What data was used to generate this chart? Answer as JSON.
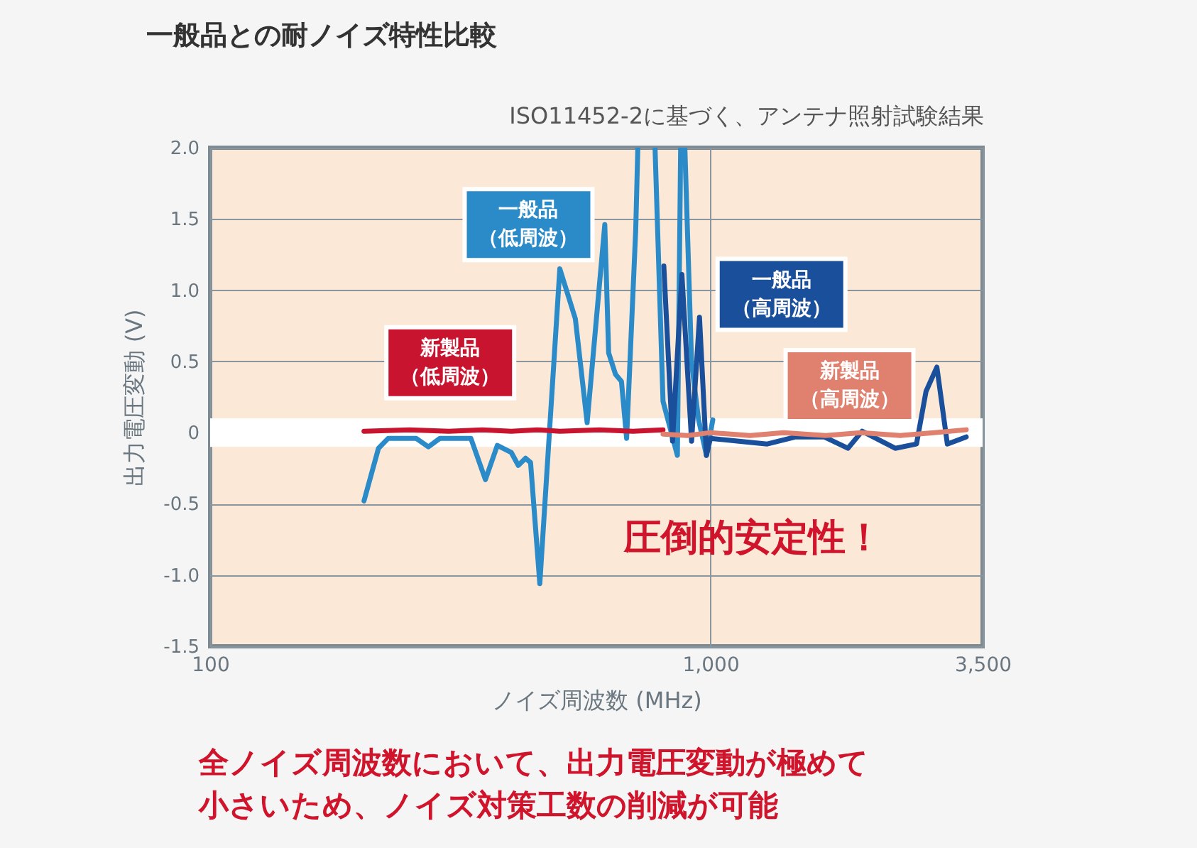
{
  "chart_data": {
    "type": "line",
    "title": "一般品との耐ノイズ特性比較",
    "subtitle": "ISO11452-2に基づく、アンテナ照射試験結果",
    "xlabel": "ノイズ周波数 (MHz)",
    "ylabel": "出力電圧変動 (V)",
    "log": "x",
    "grid": true,
    "legend": false,
    "marker": "none",
    "line_style": "solid",
    "xlim": [
      100,
      3500
    ],
    "ylim": [
      -1.5,
      2.0
    ],
    "xticks": [
      100,
      {
        "value": 1000,
        "label": "1,000"
      },
      {
        "value": 3500,
        "label": "3,500"
      }
    ],
    "yticks": [
      {
        "value": -1.5,
        "label": "-1.5"
      },
      {
        "value": -1.0,
        "label": "-1.0"
      },
      {
        "value": -0.5,
        "label": "-0.5"
      },
      0,
      {
        "value": 0.5,
        "label": "0.5"
      },
      {
        "value": 1.0,
        "label": "1.0"
      },
      {
        "value": 1.5,
        "label": "1.5"
      },
      {
        "value": 2.0,
        "label": "2.0"
      }
    ],
    "bands": [
      {
        "axis": "y",
        "from": -0.1,
        "to": 0.1,
        "color": "#ffffff"
      }
    ],
    "series": [
      {
        "name": "一般品（低周波）",
        "color": "#2b8bc9",
        "x": [
          203,
          217,
          227,
          258,
          273,
          288,
          332,
          355,
          375,
          400,
          413,
          427,
          437,
          456,
          477,
          500,
          537,
          567,
          615,
          626,
          646,
          664,
          680,
          709,
          716,
          745,
          775,
          804,
          859,
          872,
          880,
          889,
          917,
          947,
          982,
          1011
        ],
        "values": [
          -0.48,
          -0.11,
          -0.04,
          -0.04,
          -0.1,
          -0.04,
          -0.04,
          -0.33,
          -0.09,
          -0.14,
          -0.23,
          -0.18,
          -0.21,
          -1.06,
          0.02,
          1.15,
          0.8,
          0.07,
          1.46,
          0.56,
          0.41,
          0.36,
          -0.04,
          1.42,
          2.0,
          null,
          2.0,
          0.22,
          -0.16,
          2.0,
          null,
          2.0,
          0.49,
          0.09,
          -0.16,
          0.09
        ]
      },
      {
        "name": "一般品（高周波）",
        "color": "#1a4f9b",
        "x": [
          807,
          840,
          877,
          917,
          951,
          982,
          1000,
          1140,
          1299,
          1481,
          1688,
          1883,
          2010,
          2341,
          2582,
          2698,
          2836,
          2976,
          3246
        ],
        "values": [
          1.17,
          -0.06,
          1.11,
          -0.06,
          0.81,
          -0.16,
          -0.04,
          -0.06,
          -0.08,
          -0.03,
          -0.03,
          -0.11,
          0.01,
          -0.11,
          -0.08,
          0.29,
          0.46,
          -0.08,
          -0.03
        ]
      },
      {
        "name": "新製品（低周波）",
        "color": "#c8142e",
        "x": [
          203,
          250,
          300,
          350,
          400,
          450,
          500,
          600,
          700,
          804
        ],
        "values": [
          0.01,
          0.02,
          0.01,
          0.02,
          0.01,
          0.02,
          0.01,
          0.02,
          0.01,
          0.02
        ]
      },
      {
        "name": "新製品（高周波）",
        "color": "#e0806e",
        "x": [
          804,
          900,
          1000,
          1200,
          1400,
          1700,
          2000,
          2400,
          2800,
          3246
        ],
        "values": [
          -0.01,
          -0.02,
          0,
          -0.02,
          0,
          -0.02,
          0,
          -0.02,
          0,
          0.02
        ]
      }
    ],
    "annotations": [
      "圧倒的安定性！",
      "全ノイズ周波数において、出力電圧変動が極めて",
      "小さいため、ノイズ対策工数の削減が可能"
    ]
  }
}
